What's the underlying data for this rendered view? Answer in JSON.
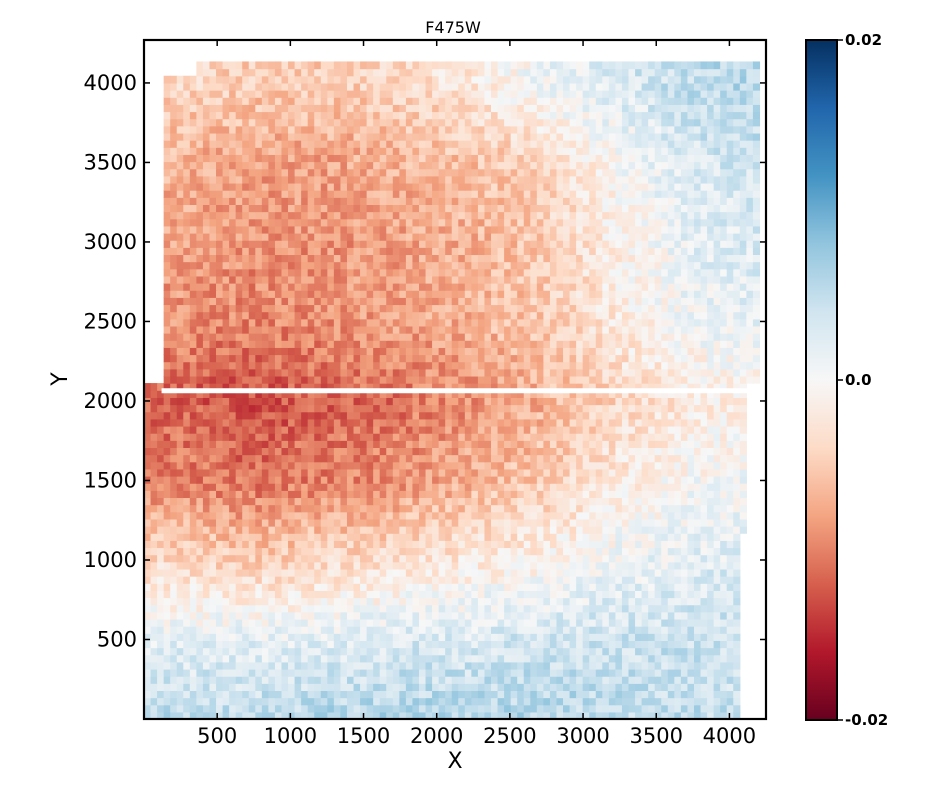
{
  "chart_data": {
    "type": "heatmap",
    "title": "F475W",
    "xlabel": "X",
    "ylabel": "Y",
    "xlim": [
      0,
      4250
    ],
    "ylim": [
      0,
      4270
    ],
    "xticks": [
      500,
      1000,
      1500,
      2000,
      2500,
      3000,
      3500,
      4000
    ],
    "yticks": [
      500,
      1000,
      1500,
      2000,
      2500,
      3000,
      3500,
      4000
    ],
    "colorbar": {
      "min": -0.02,
      "max": 0.02,
      "tick_labels": [
        "0.02",
        "0.0",
        "-0.02"
      ],
      "tick_values": [
        0.02,
        0.0,
        -0.02
      ],
      "colormap": "RdBu",
      "stops": [
        "#67001f",
        "#b2182b",
        "#d6604d",
        "#f4a582",
        "#fddbc7",
        "#f7f7f7",
        "#d1e5f0",
        "#92c5de",
        "#4393c3",
        "#2166ac",
        "#053061"
      ]
    },
    "approx_value_grid": {
      "description": "approximate mean value in 500px blocks, rows listed from top (y~4000) to bottom (y~250), columns from x~250 to x~4000",
      "rows": [
        [
          -0.004,
          -0.005,
          -0.005,
          -0.004,
          -0.002,
          0.001,
          0.003,
          0.005,
          0.006
        ],
        [
          -0.007,
          -0.008,
          -0.008,
          -0.007,
          -0.006,
          -0.004,
          0.0,
          0.003,
          0.004
        ],
        [
          -0.008,
          -0.009,
          -0.009,
          -0.008,
          -0.007,
          -0.005,
          -0.001,
          0.002,
          0.003
        ],
        [
          -0.009,
          -0.01,
          -0.009,
          -0.008,
          -0.007,
          -0.005,
          -0.002,
          0.001,
          0.002
        ],
        [
          -0.012,
          -0.013,
          -0.012,
          -0.011,
          -0.009,
          -0.007,
          -0.004,
          -0.002,
          -0.001
        ],
        [
          -0.01,
          -0.011,
          -0.01,
          -0.009,
          -0.007,
          -0.005,
          -0.002,
          0.0,
          0.001
        ],
        [
          -0.004,
          -0.005,
          -0.004,
          -0.003,
          -0.002,
          -0.001,
          0.001,
          0.002,
          0.003
        ],
        [
          0.002,
          0.002,
          0.002,
          0.003,
          0.003,
          0.004,
          0.004,
          0.004,
          0.004
        ],
        [
          0.005,
          0.005,
          0.006,
          0.006,
          0.006,
          0.006,
          0.005,
          0.005,
          0.004
        ]
      ]
    }
  }
}
